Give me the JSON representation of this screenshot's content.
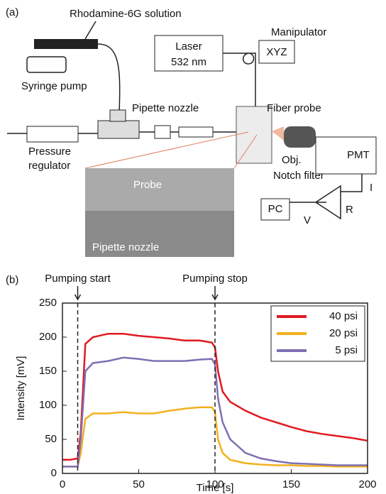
{
  "diagram": {
    "panel_label": "(a)",
    "rhodamine": "Rhodamine-6G solution",
    "syringe_pump": "Syringe pump",
    "pressure_regulator": [
      "Pressure",
      "regulator"
    ],
    "pipette_nozzle": "Pipette nozzle",
    "laser": [
      "Laser",
      "532 nm"
    ],
    "manipulator": "Manipulator",
    "xyz": "XYZ",
    "fiber_probe": "Fiber probe",
    "objective": "Obj.",
    "notch_filter": "Notch filter",
    "pmt": "PMT",
    "current": "I",
    "resistor": "R",
    "voltage": "V",
    "pc": "PC",
    "inset_probe": "Probe",
    "inset_nozzle": "Pipette nozzle"
  },
  "chart_data": {
    "type": "line",
    "panel_label": "(b)",
    "x_label": "Time [s]",
    "y_label": "Intensity [mV]",
    "x": [
      0,
      5,
      10,
      12,
      15,
      20,
      30,
      40,
      50,
      60,
      70,
      80,
      90,
      98,
      100,
      102,
      105,
      110,
      120,
      130,
      140,
      150,
      160,
      170,
      180,
      190,
      200
    ],
    "series": [
      {
        "name": "40 psi",
        "color": "#e0191f",
        "values": [
          20,
          20,
          22,
          60,
          190,
          200,
          205,
          205,
          202,
          200,
          198,
          195,
          195,
          192,
          185,
          150,
          120,
          105,
          92,
          82,
          75,
          68,
          62,
          58,
          55,
          52,
          48
        ]
      },
      {
        "name": "20 psi",
        "color": "#f2b01e",
        "values": [
          10,
          10,
          10,
          30,
          80,
          88,
          88,
          90,
          88,
          88,
          92,
          95,
          97,
          97,
          90,
          50,
          30,
          20,
          15,
          13,
          12,
          12,
          11,
          11,
          10,
          10,
          10
        ]
      },
      {
        "name": "5 psi",
        "color": "#7f6fb3",
        "values": [
          10,
          10,
          10,
          50,
          150,
          162,
          165,
          170,
          168,
          165,
          165,
          165,
          167,
          168,
          160,
          110,
          75,
          50,
          30,
          22,
          18,
          15,
          14,
          13,
          12,
          12,
          12
        ]
      }
    ],
    "xlim": [
      0,
      200
    ],
    "xticks": [
      0,
      50,
      100,
      150,
      200
    ],
    "ylim": [
      0,
      250
    ],
    "yticks": [
      0,
      50,
      100,
      150,
      200,
      250
    ],
    "annotations": [
      {
        "text": "Pumping start",
        "x": 10
      },
      {
        "text": "Pumping stop",
        "x": 100
      }
    ],
    "legend": "upper right"
  }
}
